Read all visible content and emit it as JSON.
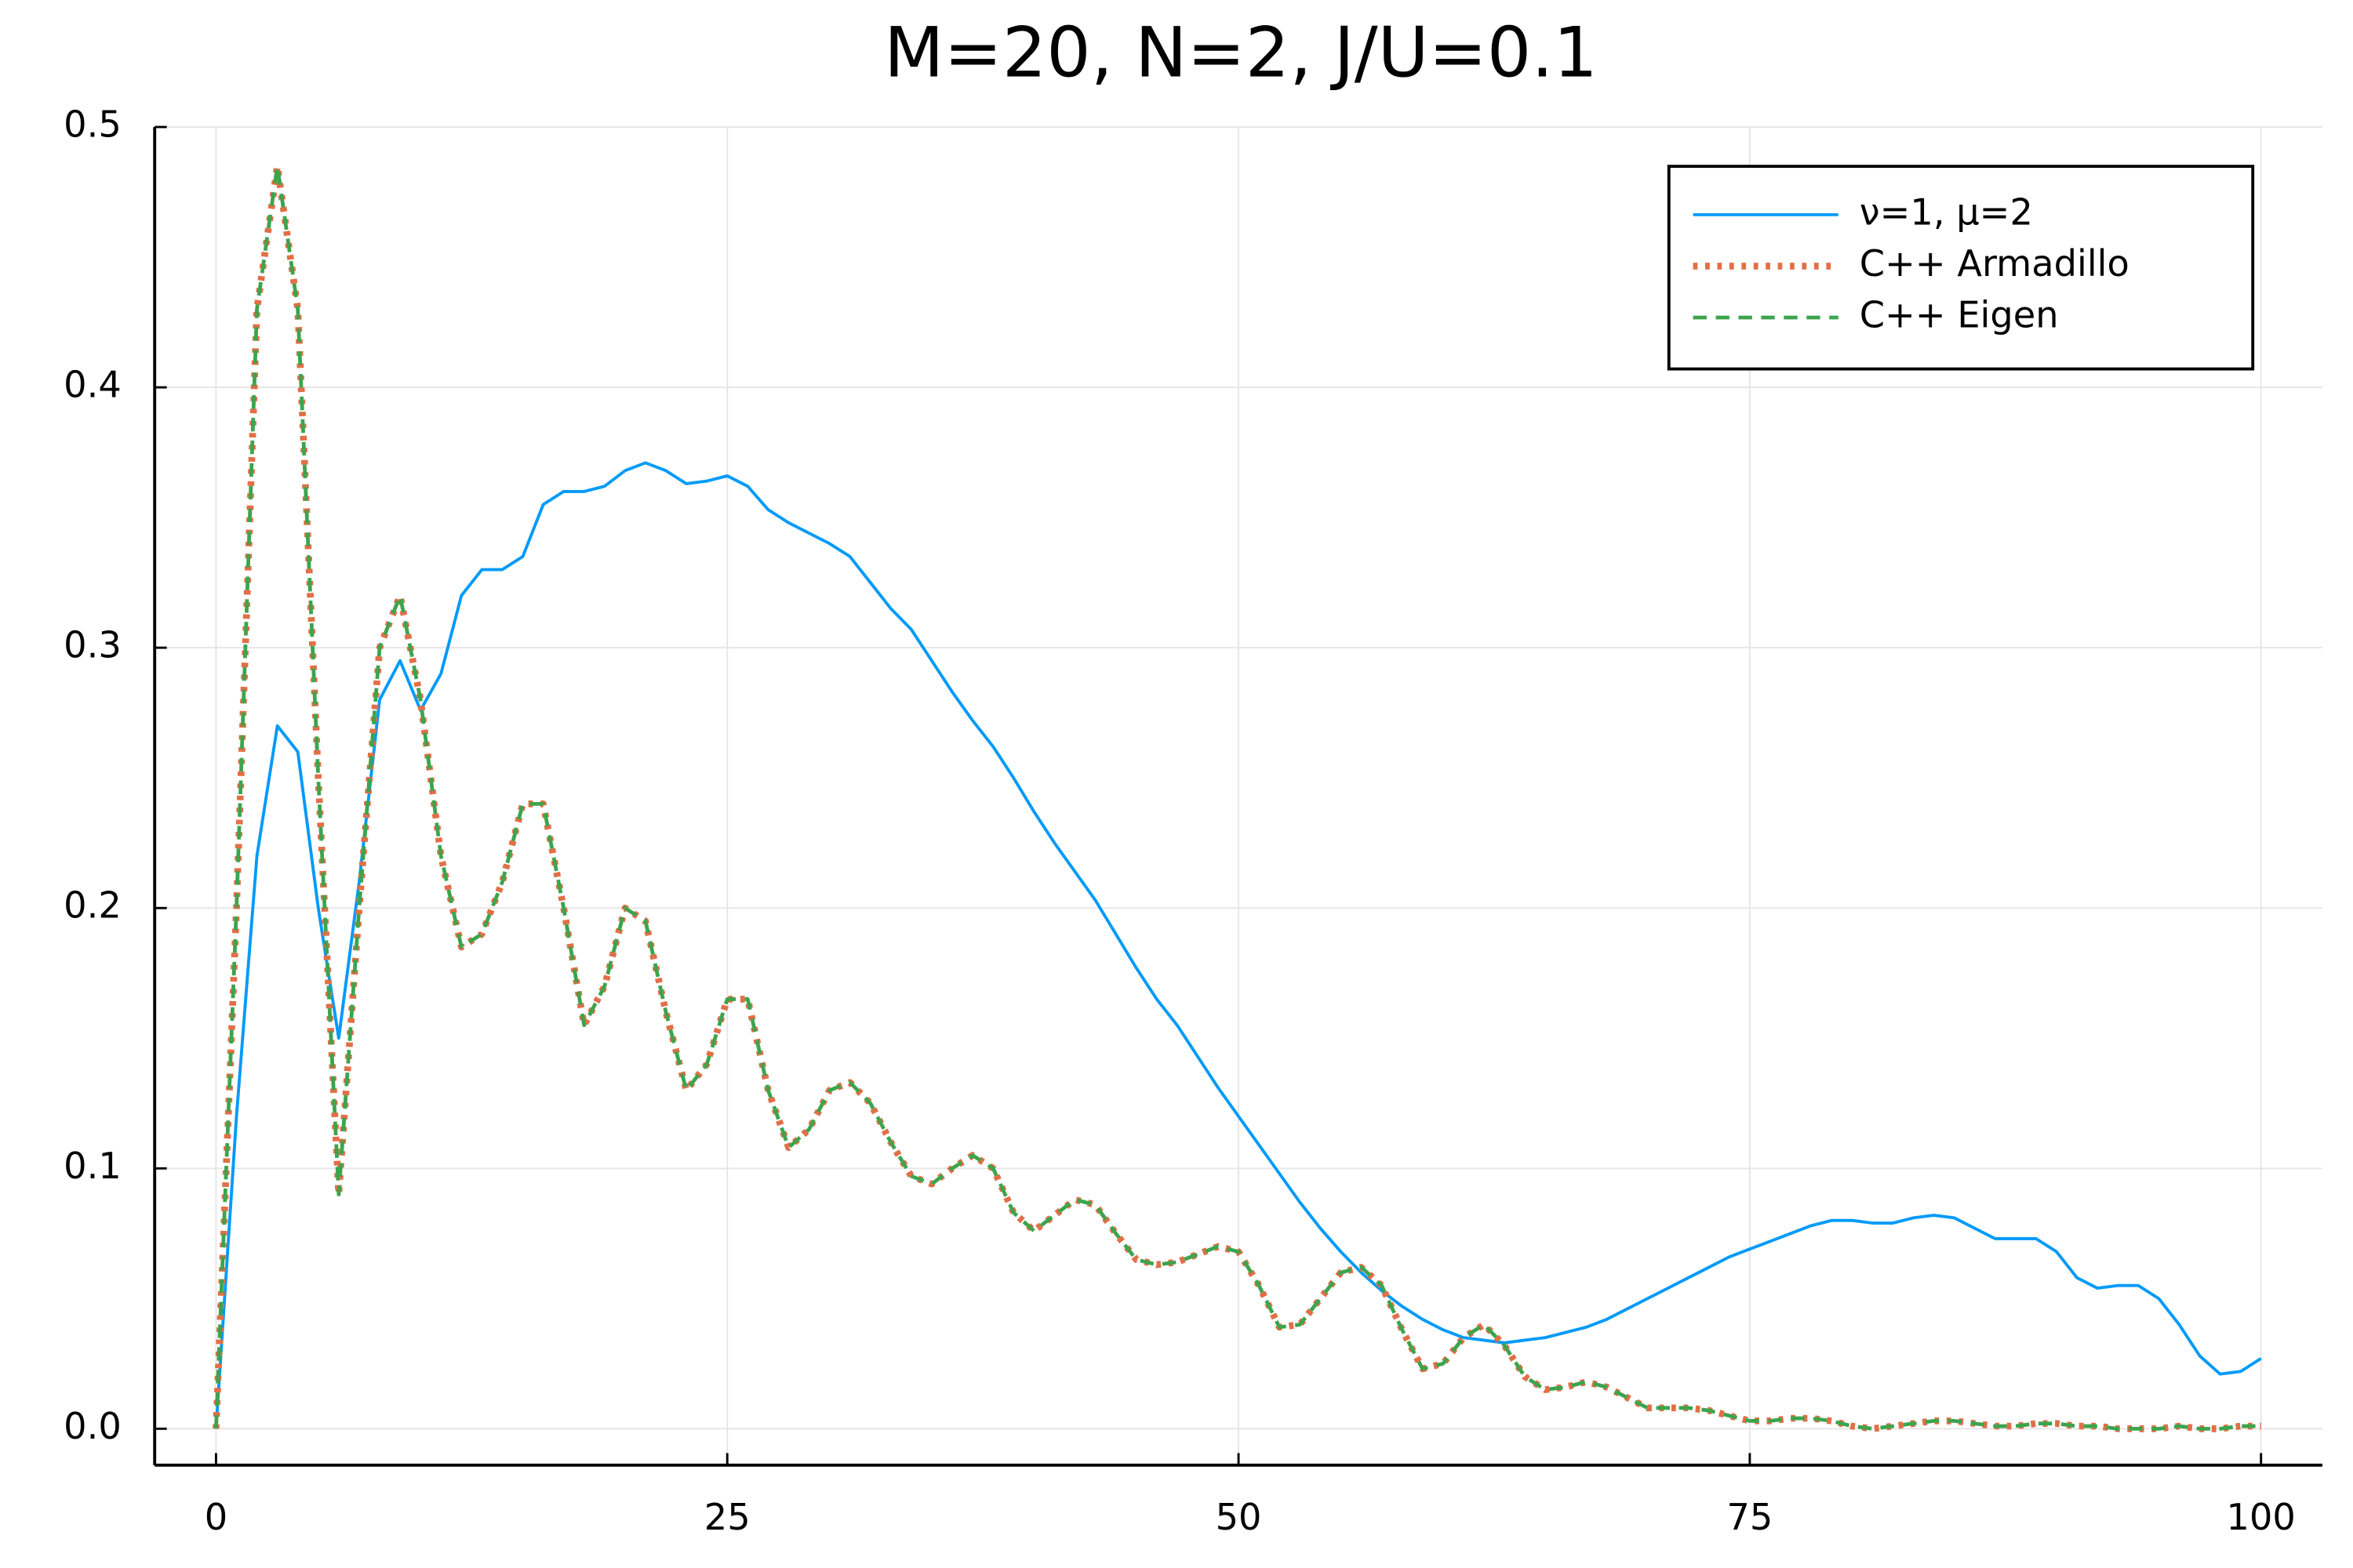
{
  "chart_data": {
    "type": "line",
    "title": "M=20, N=2, J/U=0.1",
    "x": [
      0,
      1,
      2,
      3,
      4,
      5,
      6,
      7,
      8,
      9,
      10,
      11,
      12,
      13,
      14,
      15,
      16,
      17,
      18,
      19,
      20,
      21,
      22,
      23,
      24,
      25,
      26,
      27,
      28,
      29,
      30,
      31,
      32,
      33,
      34,
      35,
      36,
      37,
      38,
      39,
      40,
      41,
      42,
      43,
      44,
      45,
      46,
      47,
      48,
      49,
      50,
      51,
      52,
      53,
      54,
      55,
      56,
      57,
      58,
      59,
      60,
      61,
      62,
      63,
      64,
      65,
      66,
      67,
      68,
      69,
      70,
      71,
      72,
      73,
      74,
      75,
      76,
      77,
      78,
      79,
      80,
      81,
      82,
      83,
      84,
      85,
      86,
      87,
      88,
      89,
      90,
      91,
      92,
      93,
      94,
      95,
      96,
      97,
      98,
      99,
      100
    ],
    "series": [
      {
        "name": "ν=1, μ=2",
        "color": "#009af9",
        "style": "solid",
        "values": [
          0,
          0.12,
          0.22,
          0.27,
          0.26,
          0.2,
          0.15,
          0.21,
          0.28,
          0.295,
          0.276,
          0.29,
          0.32,
          0.33,
          0.33,
          0.335,
          0.355,
          0.36,
          0.36,
          0.362,
          0.368,
          0.371,
          0.368,
          0.363,
          0.364,
          0.366,
          0.362,
          0.353,
          0.348,
          0.344,
          0.34,
          0.335,
          0.325,
          0.315,
          0.307,
          0.295,
          0.283,
          0.272,
          0.262,
          0.25,
          0.237,
          0.225,
          0.214,
          0.203,
          0.19,
          0.177,
          0.165,
          0.155,
          0.143,
          0.131,
          0.12,
          0.109,
          0.098,
          0.087,
          0.077,
          0.068,
          0.06,
          0.053,
          0.047,
          0.042,
          0.038,
          0.035,
          0.034,
          0.033,
          0.034,
          0.035,
          0.037,
          0.039,
          0.042,
          0.046,
          0.05,
          0.054,
          0.058,
          0.062,
          0.066,
          0.069,
          0.072,
          0.075,
          0.078,
          0.08,
          0.08,
          0.079,
          0.079,
          0.081,
          0.082,
          0.081,
          0.077,
          0.073,
          0.073,
          0.073,
          0.068,
          0.058,
          0.054,
          0.055,
          0.055,
          0.05,
          0.04,
          0.028,
          0.021,
          0.022,
          0.027
        ]
      },
      {
        "name": "C++ Armadillo",
        "color": "#e26f46",
        "style": "dotted",
        "values": [
          0,
          0.2,
          0.43,
          0.485,
          0.43,
          0.25,
          0.09,
          0.2,
          0.3,
          0.32,
          0.28,
          0.22,
          0.185,
          0.19,
          0.21,
          0.24,
          0.24,
          0.2,
          0.155,
          0.17,
          0.2,
          0.195,
          0.16,
          0.13,
          0.14,
          0.165,
          0.165,
          0.13,
          0.108,
          0.115,
          0.13,
          0.133,
          0.125,
          0.11,
          0.097,
          0.094,
          0.1,
          0.105,
          0.1,
          0.083,
          0.076,
          0.082,
          0.088,
          0.086,
          0.075,
          0.065,
          0.063,
          0.064,
          0.067,
          0.07,
          0.068,
          0.055,
          0.039,
          0.04,
          0.05,
          0.06,
          0.062,
          0.055,
          0.038,
          0.023,
          0.025,
          0.035,
          0.04,
          0.032,
          0.02,
          0.015,
          0.016,
          0.018,
          0.016,
          0.012,
          0.008,
          0.008,
          0.008,
          0.007,
          0.005,
          0.003,
          0.003,
          0.004,
          0.004,
          0.003,
          0.001,
          0,
          0.001,
          0.002,
          0.003,
          0.003,
          0.002,
          0.001,
          0.001,
          0.002,
          0.002,
          0.001,
          0.001,
          0,
          0,
          0,
          0.001,
          0,
          0,
          0.001,
          0.001
        ]
      },
      {
        "name": "C++ Eigen",
        "color": "#3da44d",
        "style": "dashed",
        "values": [
          0,
          0.2,
          0.43,
          0.485,
          0.43,
          0.25,
          0.09,
          0.2,
          0.3,
          0.32,
          0.28,
          0.22,
          0.185,
          0.19,
          0.21,
          0.24,
          0.24,
          0.2,
          0.155,
          0.17,
          0.2,
          0.195,
          0.16,
          0.13,
          0.14,
          0.165,
          0.165,
          0.13,
          0.108,
          0.115,
          0.13,
          0.133,
          0.125,
          0.11,
          0.097,
          0.094,
          0.1,
          0.105,
          0.1,
          0.083,
          0.076,
          0.082,
          0.088,
          0.086,
          0.075,
          0.065,
          0.063,
          0.064,
          0.067,
          0.07,
          0.068,
          0.055,
          0.039,
          0.04,
          0.05,
          0.06,
          0.062,
          0.055,
          0.038,
          0.023,
          0.025,
          0.035,
          0.04,
          0.032,
          0.02,
          0.015,
          0.016,
          0.018,
          0.016,
          0.012,
          0.008,
          0.008,
          0.008,
          0.007,
          0.005,
          0.003,
          0.003,
          0.004,
          0.004,
          0.003,
          0.001,
          0,
          0.001,
          0.002,
          0.003,
          0.003,
          0.002,
          0.001,
          0.001,
          0.002,
          0.002,
          0.001,
          0.001,
          0,
          0,
          0,
          0.001,
          0,
          0,
          0.001,
          0.001
        ]
      }
    ],
    "xlim": [
      -3,
      103
    ],
    "xticks": [
      0,
      25,
      50,
      75,
      100
    ],
    "ylim": [
      -0.014,
      0.5
    ],
    "yticks": [
      {
        "value": 0,
        "label": "0.0"
      },
      0.1,
      0.2,
      0.3,
      0.4,
      0.5
    ],
    "grid": true,
    "legend": "top-right"
  }
}
